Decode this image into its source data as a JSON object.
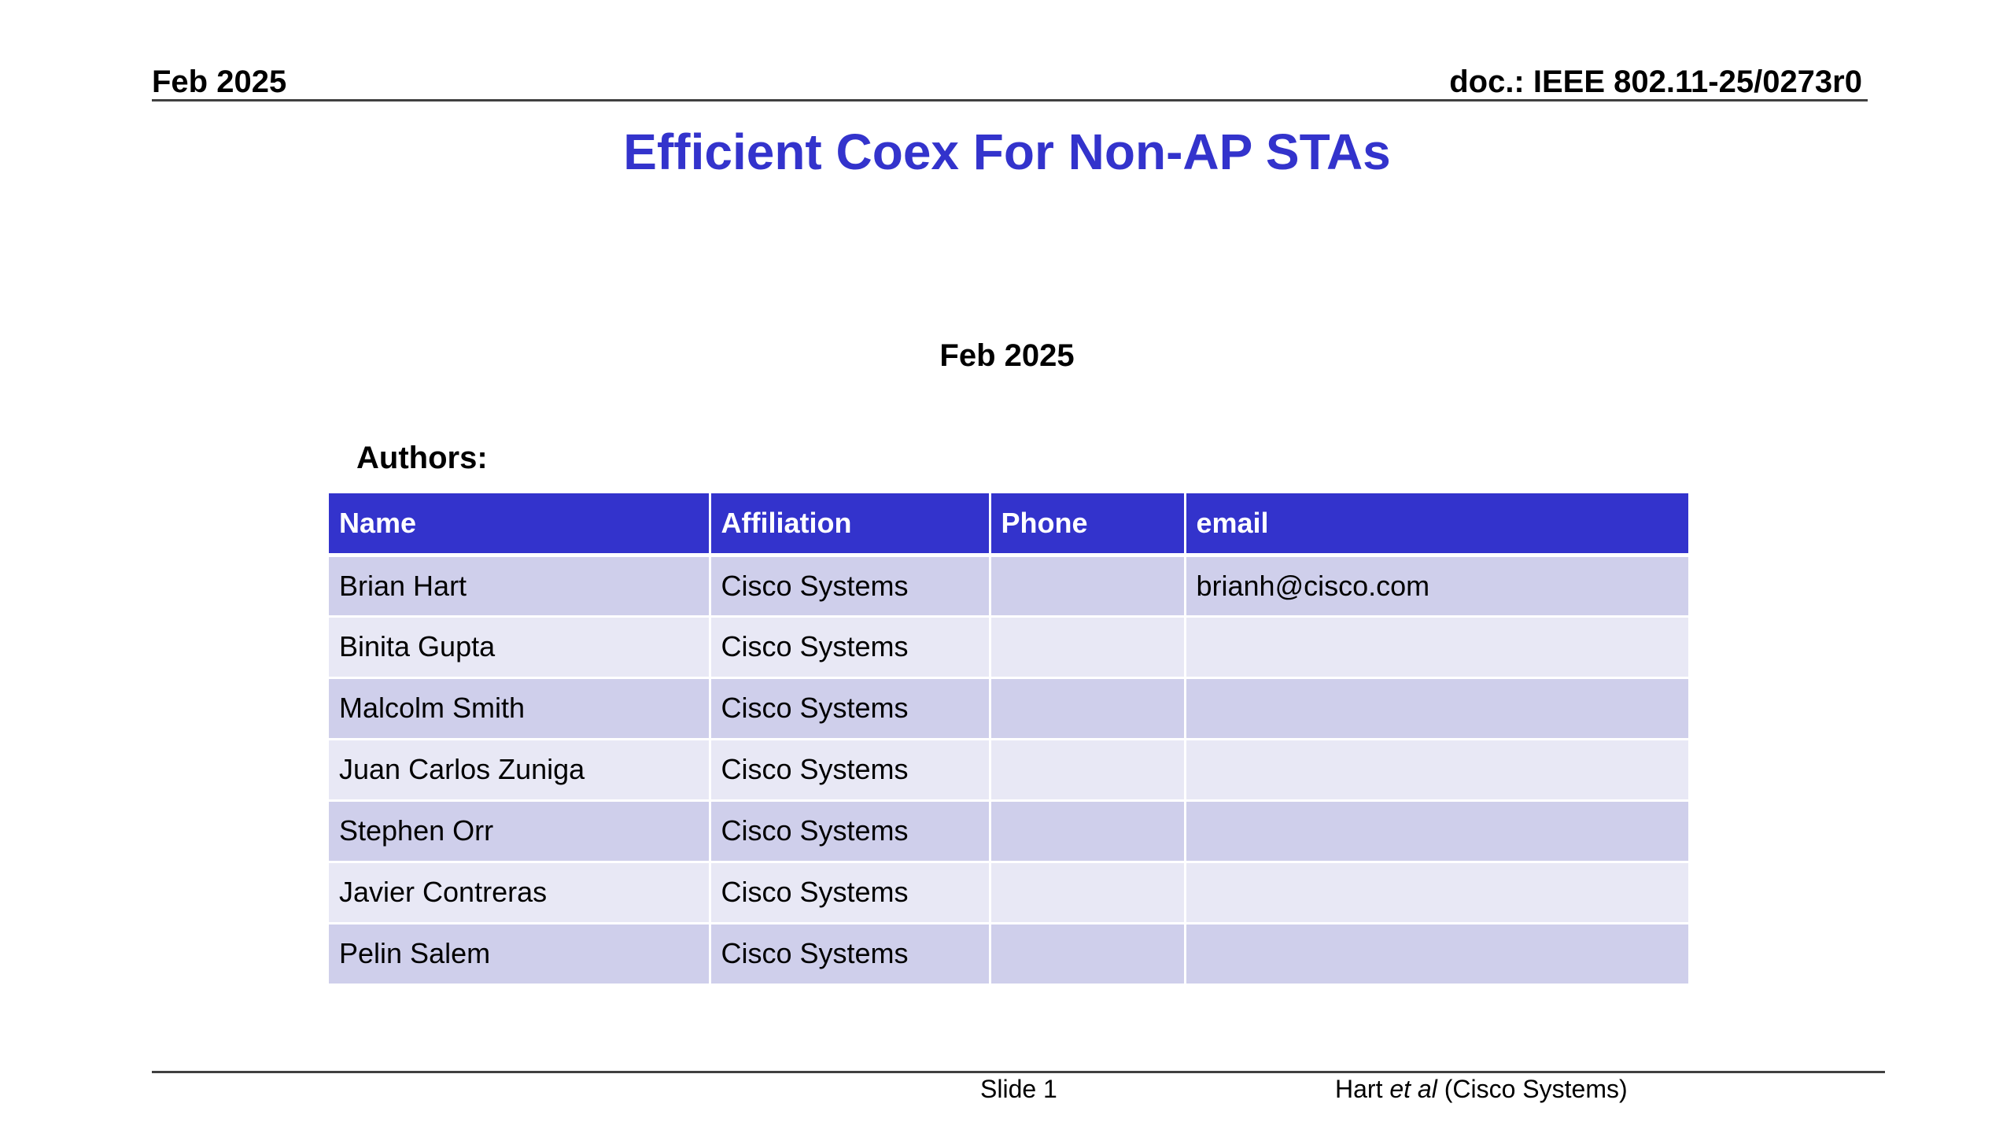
{
  "header": {
    "date": "Feb 2025",
    "doc_id": "doc.: IEEE 802.11-25/0273r0"
  },
  "title": "Efficient Coex For Non-AP STAs",
  "date": "Feb 2025",
  "authors_label": "Authors:",
  "table": {
    "columns": [
      "Name",
      "Affiliation",
      "Phone",
      "email"
    ],
    "rows": [
      {
        "name": "Brian Hart",
        "affiliation": "Cisco Systems",
        "phone": "",
        "email": "brianh@cisco.com"
      },
      {
        "name": "Binita Gupta",
        "affiliation": "Cisco Systems",
        "phone": "",
        "email": ""
      },
      {
        "name": "Malcolm Smith",
        "affiliation": "Cisco Systems",
        "phone": "",
        "email": ""
      },
      {
        "name": "Juan Carlos Zuniga",
        "affiliation": "Cisco Systems",
        "phone": "",
        "email": ""
      },
      {
        "name": "Stephen Orr",
        "affiliation": "Cisco Systems",
        "phone": "",
        "email": ""
      },
      {
        "name": "Javier Contreras",
        "affiliation": "Cisco Systems",
        "phone": "",
        "email": ""
      },
      {
        "name": "Pelin Salem",
        "affiliation": "Cisco Systems",
        "phone": "",
        "email": ""
      }
    ]
  },
  "footer": {
    "slide": "Slide 1",
    "author_name": "Hart",
    "author_etal": "et al",
    "author_org": "(Cisco Systems)"
  },
  "colors": {
    "title": "#3333cc",
    "table_header": "#3333cc",
    "row_odd": "#cfcfeb",
    "row_even": "#e8e8f5"
  }
}
